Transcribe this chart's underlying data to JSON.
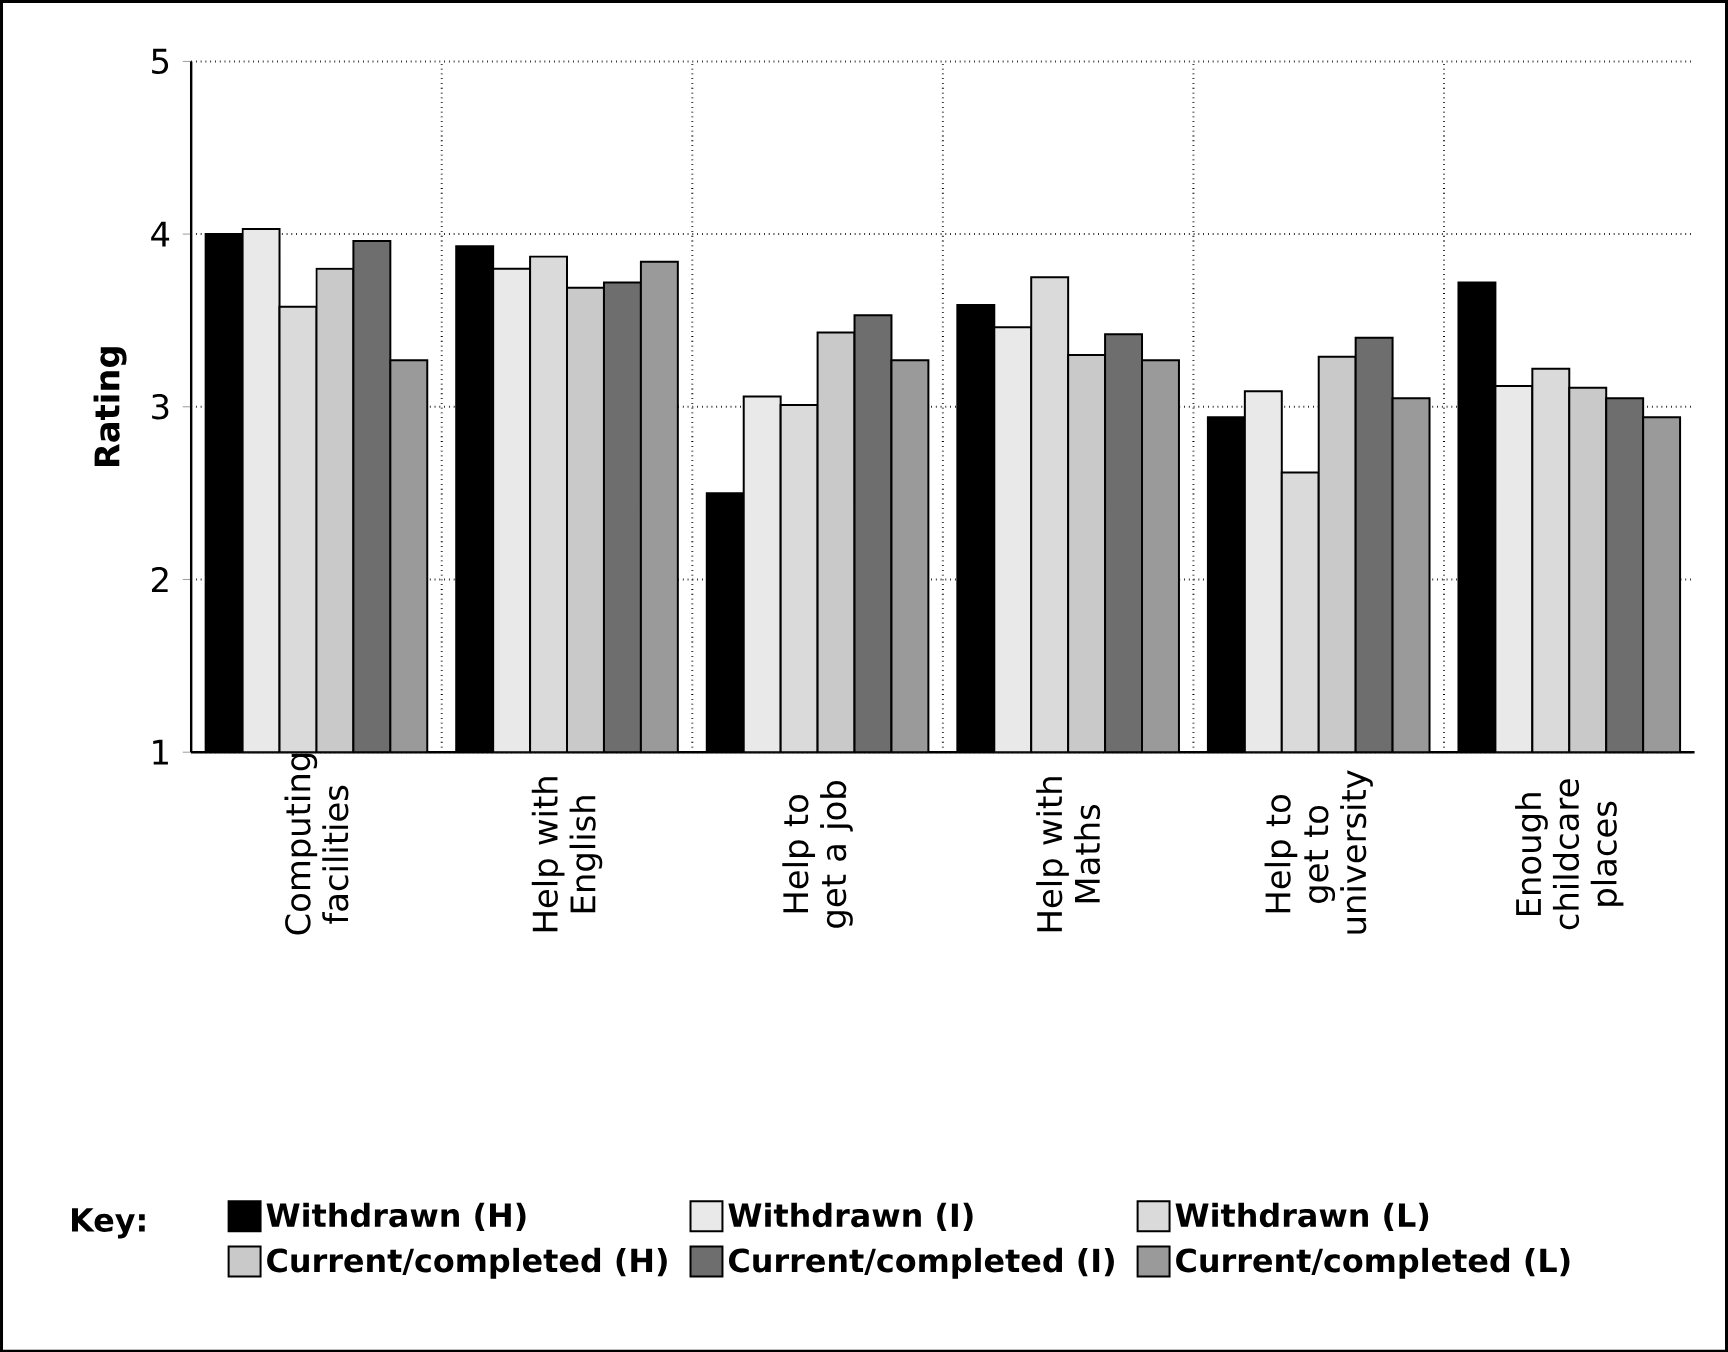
{
  "chart_data": {
    "type": "bar",
    "ylabel": "Rating",
    "legend_title": "Key:",
    "categories": [
      "Computing facilities",
      "Help with English",
      "Help to get a job",
      "Help with Maths",
      "Help to get to university",
      "Enough childcare places"
    ],
    "series": [
      {
        "name": "Withdrawn (H)",
        "color": "#000000",
        "values": [
          4.0,
          3.93,
          2.5,
          3.59,
          2.94,
          3.72
        ]
      },
      {
        "name": "Withdrawn (I)",
        "color": "#e9e9e9",
        "values": [
          4.03,
          3.8,
          3.06,
          3.46,
          3.09,
          3.12
        ]
      },
      {
        "name": "Withdrawn (L)",
        "color": "#dadada",
        "values": [
          3.58,
          3.87,
          3.01,
          3.75,
          2.62,
          3.22
        ]
      },
      {
        "name": "Current/completed (H)",
        "color": "#c9c9c9",
        "values": [
          3.8,
          3.69,
          3.43,
          3.3,
          3.29,
          3.11
        ]
      },
      {
        "name": "Current/completed (I)",
        "color": "#6e6e6e",
        "values": [
          3.96,
          3.72,
          3.53,
          3.42,
          3.4,
          3.05
        ]
      },
      {
        "name": "Current/completed (L)",
        "color": "#9a9a9a",
        "values": [
          3.27,
          3.84,
          3.27,
          3.27,
          3.05,
          2.94
        ]
      }
    ],
    "ylim": [
      1,
      5
    ],
    "yticks": [
      1,
      2,
      3,
      4,
      5
    ],
    "grid": true,
    "legend": "bottom"
  }
}
